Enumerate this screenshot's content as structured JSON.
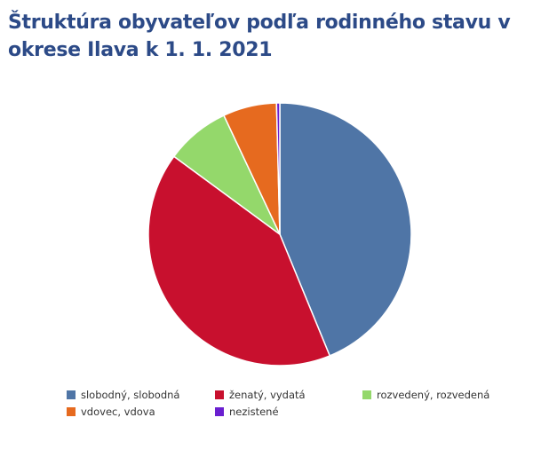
{
  "chart_data": {
    "type": "pie",
    "title": "Štruktúra obyvateľov podľa rodinného stavu v okrese Ilava k 1. 1. 2021",
    "series": [
      {
        "name": "slobodný, slobodná",
        "value": 43.8,
        "color": "#4f75a6"
      },
      {
        "name": "ženatý, vydatá",
        "value": 41.3,
        "color": "#c8102e"
      },
      {
        "name": "rozvedený, rozvedená",
        "value": 7.9,
        "color": "#94d86b"
      },
      {
        "name": "vdovec, vdova",
        "value": 6.6,
        "color": "#e66a1f"
      },
      {
        "name": "nezistené",
        "value": 0.4,
        "color": "#6a1fd0"
      }
    ],
    "legend_position": "bottom"
  }
}
